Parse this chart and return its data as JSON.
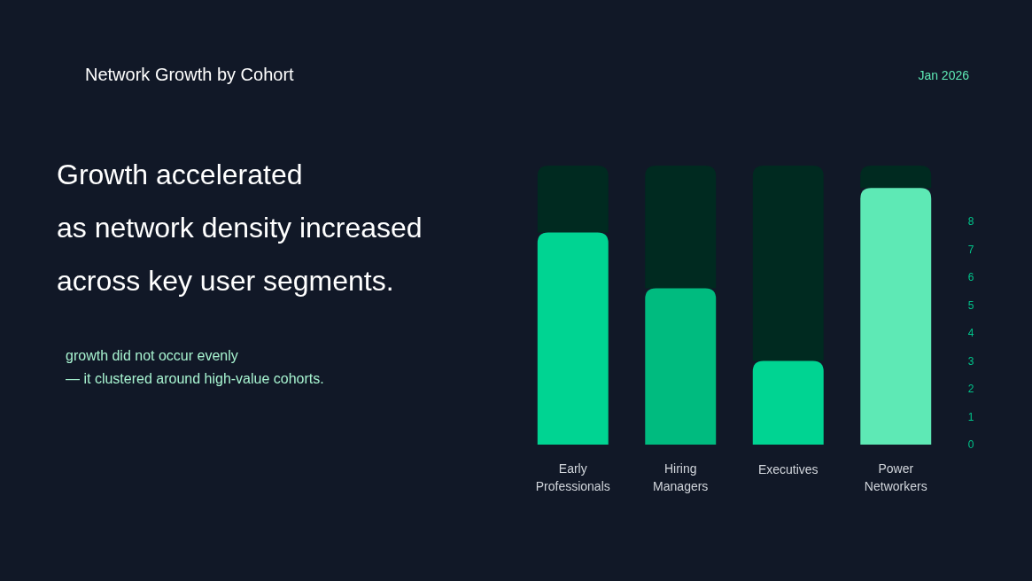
{
  "chart_data": {
    "type": "bar",
    "title": "Network Growth by Cohort",
    "subtitle": "Growth accelerated\nas network density increased\nacross key user segments.",
    "categories": [
      "Early Professionals",
      "Hiring Managers",
      "Executives",
      "Power Networkers"
    ],
    "stacked": true,
    "series": [
      {
        "values": [
          7.6,
          5.6,
          3.0,
          9.2
        ],
        "colors": [
          "#00d492",
          "#00bb7f",
          "#00d492",
          "#5ee9b5"
        ]
      },
      {
        "values": [
          2.4,
          4.4,
          7.0,
          0.8
        ],
        "color": "#002a20"
      }
    ],
    "ylim": [
      0,
      10
    ],
    "yticks": [
      0,
      1,
      2,
      3,
      4,
      5,
      6,
      7,
      8
    ],
    "annotations": [
      "Jan 2026",
      "growth did not occur evenly\n— it clustered around high-value cohorts."
    ]
  }
}
